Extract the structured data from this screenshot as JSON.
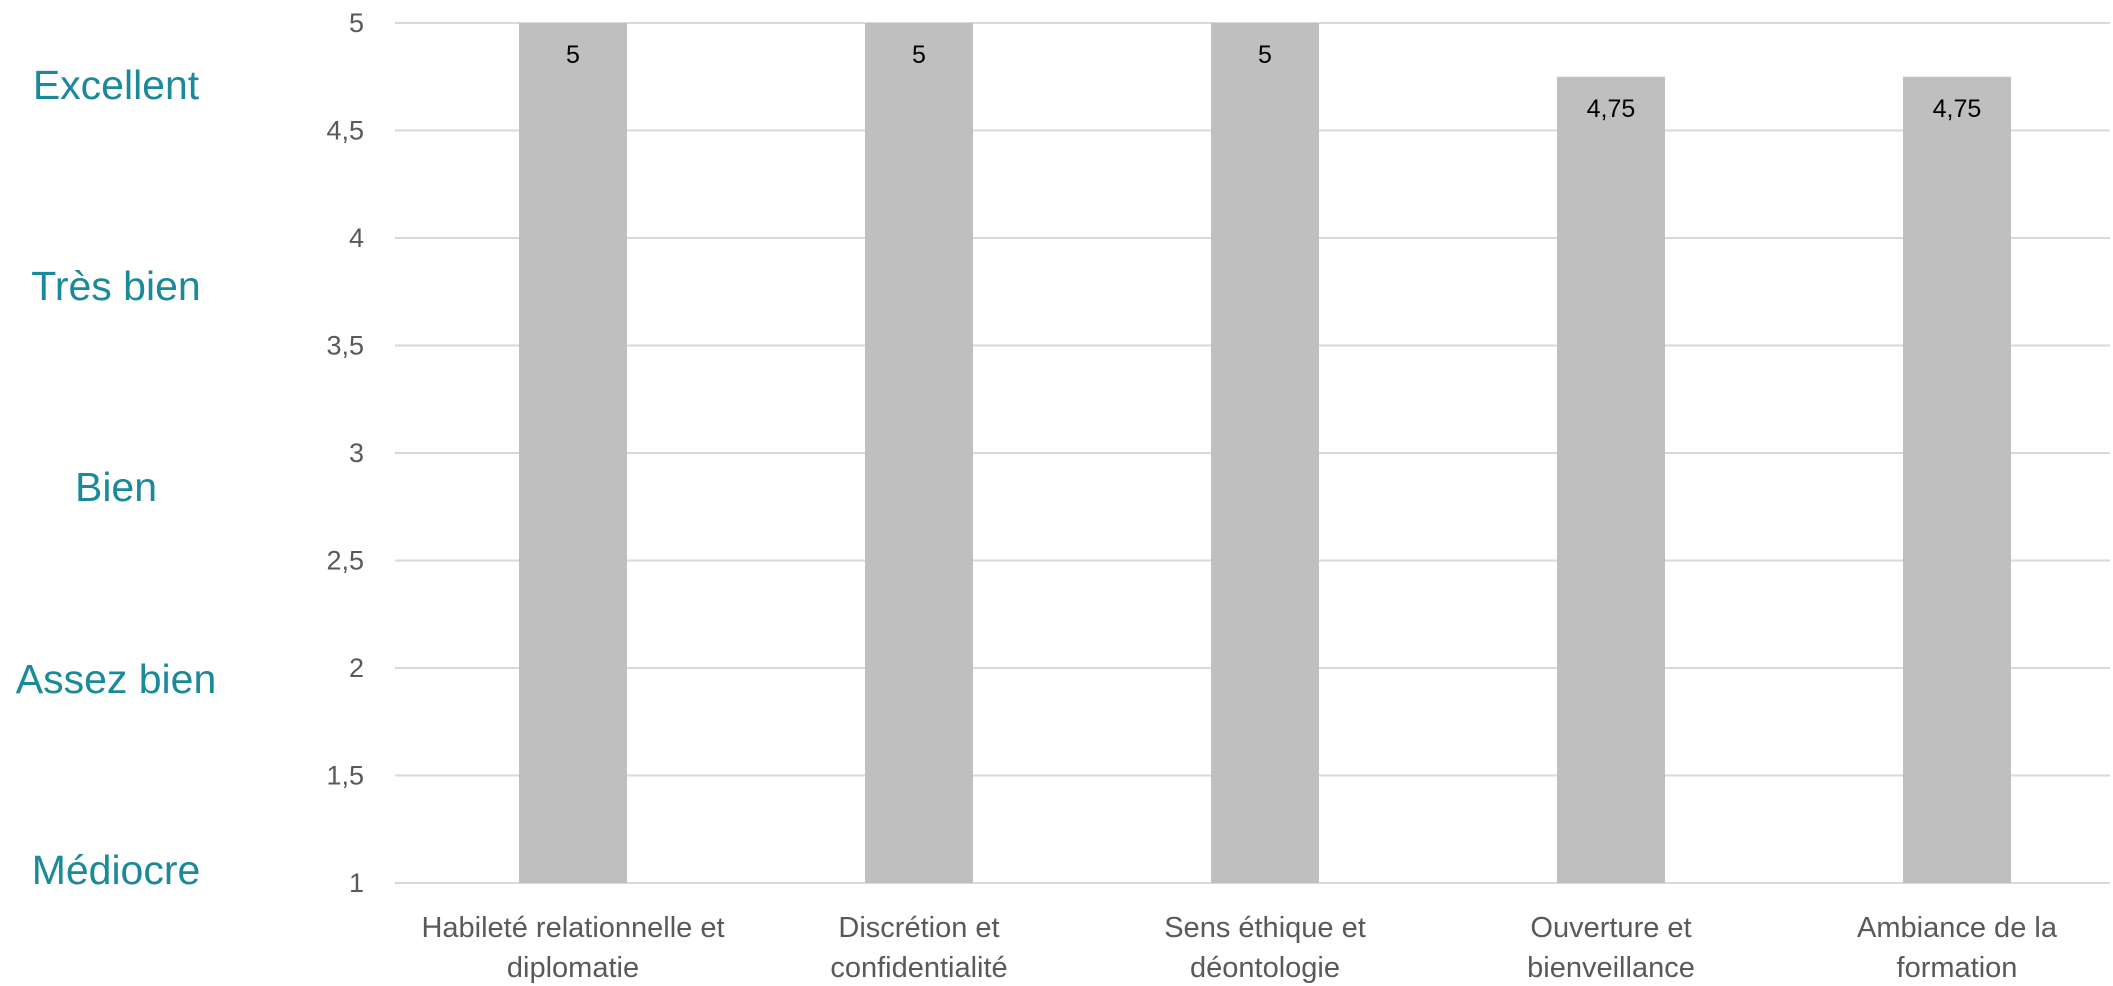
{
  "colors": {
    "bar": "#bfbfbf",
    "grid": "#d9d9d9",
    "rating_text": "#1a8a9a",
    "tick_text": "#595959"
  },
  "rating_labels": [
    "Excellent",
    "Très bien",
    "Bien",
    "Assez bien",
    "Médiocre"
  ],
  "chart_data": {
    "type": "bar",
    "categories": [
      [
        "Habileté relationnelle et",
        "diplomatie"
      ],
      [
        "Discrétion et",
        "confidentialité"
      ],
      [
        "Sens éthique et",
        "déontologie"
      ],
      [
        "Ouverture et",
        "bienveillance"
      ],
      [
        "Ambiance de la",
        "formation"
      ]
    ],
    "values": [
      5,
      5,
      5,
      4.75,
      4.75
    ],
    "data_labels": [
      "5",
      "5",
      "5",
      "4,75",
      "4,75"
    ],
    "yticks": [
      1,
      1.5,
      2,
      2.5,
      3,
      3.5,
      4,
      4.5,
      5
    ],
    "ytick_labels": [
      "1",
      "1,5",
      "2",
      "2,5",
      "3",
      "3,5",
      "4",
      "4,5",
      "5"
    ],
    "ylim": [
      1,
      5
    ],
    "grid": true,
    "title": "",
    "xlabel": "",
    "ylabel": ""
  }
}
